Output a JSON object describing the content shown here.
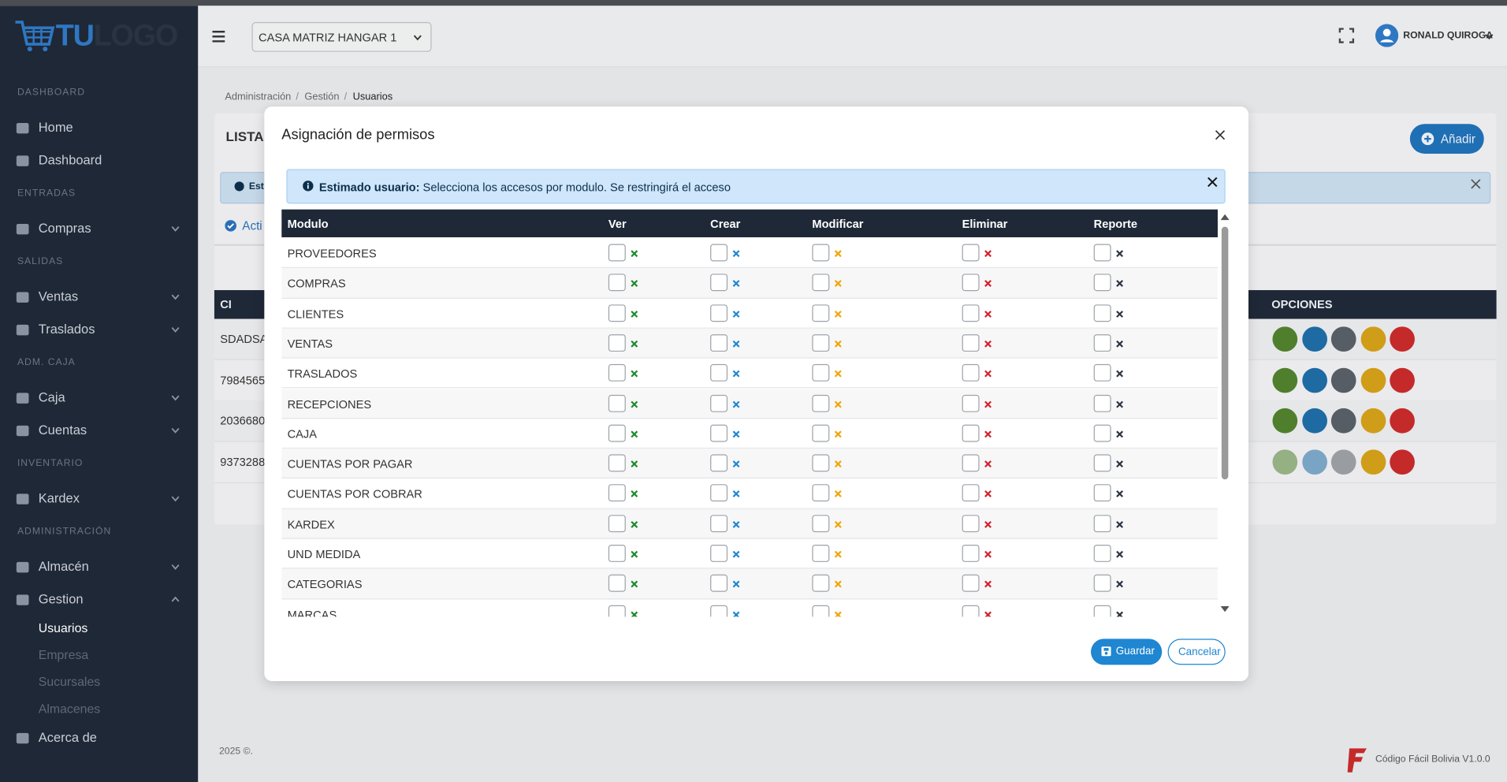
{
  "logo": {
    "parts": [
      "TU",
      "LOGO"
    ],
    "colors": [
      "#2f77c2",
      "#2a3342"
    ]
  },
  "topbar": {
    "branch": "CASA MATRIZ HANGAR 1",
    "user": "RONALD QUIROGA"
  },
  "sidebar": {
    "sections": [
      {
        "title": "DASHBOARD",
        "items": [
          {
            "label": "Home"
          },
          {
            "label": "Dashboard"
          }
        ]
      },
      {
        "title": "ENTRADAS",
        "items": [
          {
            "label": "Compras",
            "expandable": true
          }
        ]
      },
      {
        "title": "SALIDAS",
        "items": [
          {
            "label": "Ventas",
            "expandable": true
          },
          {
            "label": "Traslados",
            "expandable": true
          }
        ]
      },
      {
        "title": "ADM. CAJA",
        "items": [
          {
            "label": "Caja",
            "expandable": true
          },
          {
            "label": "Cuentas",
            "expandable": true
          }
        ]
      },
      {
        "title": "INVENTARIO",
        "items": [
          {
            "label": "Kardex",
            "expandable": true
          }
        ]
      },
      {
        "title": "ADMINISTRACIÓN",
        "items": [
          {
            "label": "Almacén",
            "expandable": true
          },
          {
            "label": "Gestion",
            "expandable": true,
            "open": true,
            "children": [
              {
                "label": "Usuarios",
                "active": true
              },
              {
                "label": "Empresa"
              },
              {
                "label": "Sucursales"
              },
              {
                "label": "Almacenes"
              }
            ]
          },
          {
            "label": "Acerca de"
          }
        ]
      }
    ]
  },
  "breadcrumb": {
    "items": [
      "Administración",
      "Gestión",
      "Usuarios"
    ],
    "separator": "/"
  },
  "background": {
    "card_title": "LISTAD",
    "add_button": "Añadir",
    "alert": "Est",
    "tab": "Acti",
    "table_header": [
      "CI",
      "OPCIONES"
    ],
    "rows": [
      "SDADSA",
      "7984565",
      "2036680",
      "9373288"
    ],
    "option_colors": [
      "#4f7f2c",
      "#1e6aa3",
      "#565d64",
      "#d09d19",
      "#c42a2a"
    ]
  },
  "footer": {
    "copyright": "2025 ©.",
    "brand": "Código Fácil Bolivia V1.0.0"
  },
  "modal": {
    "title": "Asignación de permisos",
    "alert": {
      "bold": "Estimado usuario:",
      "text": " Selecciona los accesos por modulo. Se restringirá el acceso"
    },
    "columns": [
      {
        "label": "Modulo"
      },
      {
        "label": "Ver",
        "color": "#1b8a2b"
      },
      {
        "label": "Crear",
        "color": "#1f86d1"
      },
      {
        "label": "Modificar",
        "color": "#f0a500"
      },
      {
        "label": "Eliminar",
        "color": "#d3212d"
      },
      {
        "label": "Reporte",
        "color": "#2a3342"
      }
    ],
    "rows": [
      "PROVEEDORES",
      "COMPRAS",
      "CLIENTES",
      "VENTAS",
      "TRASLADOS",
      "RECEPCIONES",
      "CAJA",
      "CUENTAS POR PAGAR",
      "CUENTAS POR COBRAR",
      "KARDEX",
      "UND MEDIDA",
      "CATEGORIAS",
      "MARCAS"
    ],
    "buttons": {
      "save": "Guardar",
      "cancel": "Cancelar"
    }
  }
}
